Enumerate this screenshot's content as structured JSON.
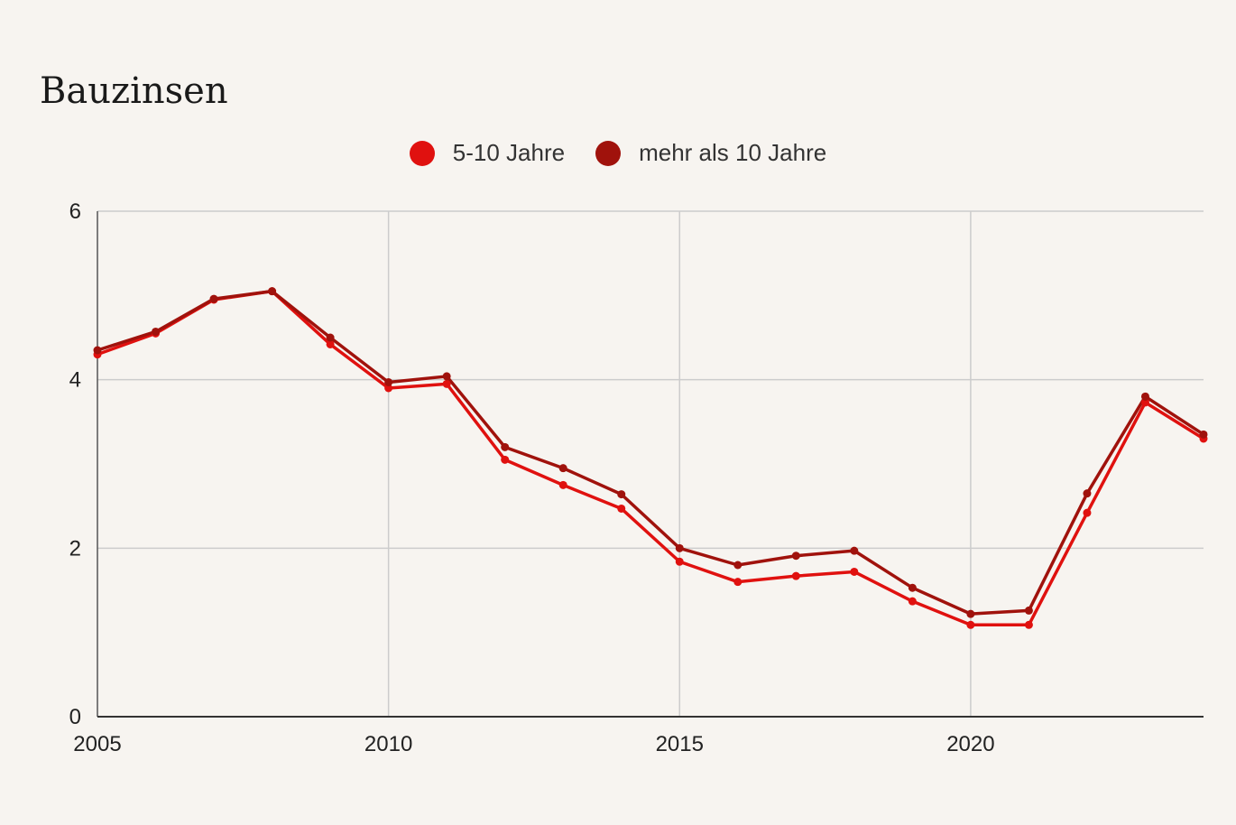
{
  "chart_data": {
    "type": "line",
    "title": "Bauzinsen",
    "xlabel": "",
    "ylabel": "",
    "xlim": [
      2005,
      2024
    ],
    "ylim": [
      0,
      6
    ],
    "x_ticks": [
      "2005",
      "2010",
      "2015",
      "2020"
    ],
    "y_ticks": [
      "0",
      "2",
      "4",
      "6"
    ],
    "grid": true,
    "legend_position": "top-center",
    "x": [
      2005,
      2006,
      2007,
      2008,
      2009,
      2010,
      2011,
      2012,
      2013,
      2014,
      2015,
      2016,
      2017,
      2018,
      2019,
      2020,
      2021,
      2022,
      2023,
      2024
    ],
    "series": [
      {
        "name": "5-10 Jahre",
        "color": "#e0110f",
        "values": [
          4.3,
          4.55,
          4.95,
          5.05,
          4.42,
          3.9,
          3.95,
          3.05,
          2.75,
          2.47,
          1.84,
          1.6,
          1.67,
          1.72,
          1.37,
          1.09,
          1.09,
          2.42,
          3.73,
          3.3
        ]
      },
      {
        "name": "mehr als 10 Jahre",
        "color": "#a0120c",
        "values": [
          4.35,
          4.57,
          4.96,
          5.05,
          4.5,
          3.97,
          4.04,
          3.2,
          2.95,
          2.64,
          2.0,
          1.8,
          1.91,
          1.97,
          1.53,
          1.22,
          1.26,
          2.65,
          3.8,
          3.35
        ]
      }
    ]
  }
}
